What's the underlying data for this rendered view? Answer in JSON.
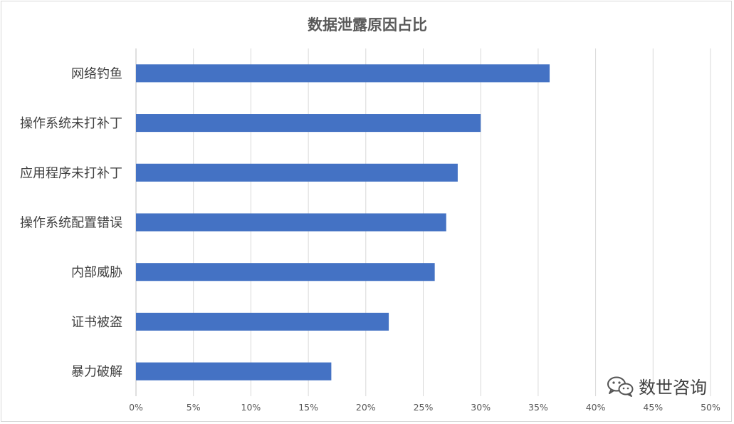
{
  "chart_data": {
    "type": "bar",
    "orientation": "horizontal",
    "title": "数据泄露原因占比",
    "categories": [
      "网络钓鱼",
      "操作系统未打补丁",
      "应用程序未打补丁",
      "操作系统配置错误",
      "内部威胁",
      "证书被盗",
      "暴力破解"
    ],
    "values": [
      36,
      30,
      28,
      27,
      26,
      22,
      17
    ],
    "value_unit": "%",
    "xlim": [
      0,
      50
    ],
    "x_ticks": [
      "0%",
      "5%",
      "10%",
      "15%",
      "20%",
      "25%",
      "30%",
      "35%",
      "40%",
      "45%",
      "50%"
    ],
    "xlabel": "",
    "ylabel": "",
    "grid": "vertical",
    "legend": "none",
    "bar_color": "#4472c4"
  },
  "watermark": {
    "text": "数世咨询",
    "icon": "wechat-icon"
  }
}
